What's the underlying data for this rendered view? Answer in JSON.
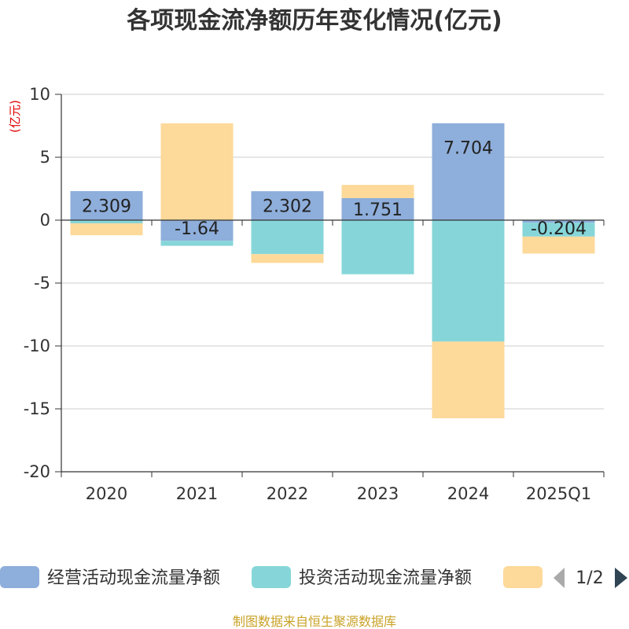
{
  "chart_data": {
    "type": "bar",
    "stacked": true,
    "title": "各项现金流净额历年变化情况(亿元)",
    "ylabel": "(亿元)",
    "categories": [
      "2020",
      "2021",
      "2022",
      "2023",
      "2024",
      "2025Q1"
    ],
    "ylim": [
      -20,
      10
    ],
    "yticks": [
      10,
      5,
      0,
      -5,
      -10,
      -15,
      -20
    ],
    "grid": true,
    "series": [
      {
        "name": "经营活动现金流量净额",
        "color": "#8eaedb",
        "values": [
          2.309,
          -1.64,
          2.302,
          1.751,
          7.704,
          -0.204
        ],
        "labels": [
          "2.309",
          "-1.64",
          "2.302",
          "1.751",
          "7.704",
          "-0.204"
        ]
      },
      {
        "name": "投资活动现金流量净额",
        "color": "#86d6d9",
        "values": [
          -0.25,
          -0.4,
          -2.7,
          -4.3,
          -9.65,
          -1.1
        ]
      },
      {
        "name": "",
        "color": "#fdd99a",
        "values": [
          -0.95,
          7.7,
          -0.7,
          1.05,
          -6.1,
          -1.35
        ]
      }
    ],
    "legend": {
      "position": "bottom",
      "page": "1/2"
    }
  },
  "source": "制图数据来自恒生聚源数据库"
}
